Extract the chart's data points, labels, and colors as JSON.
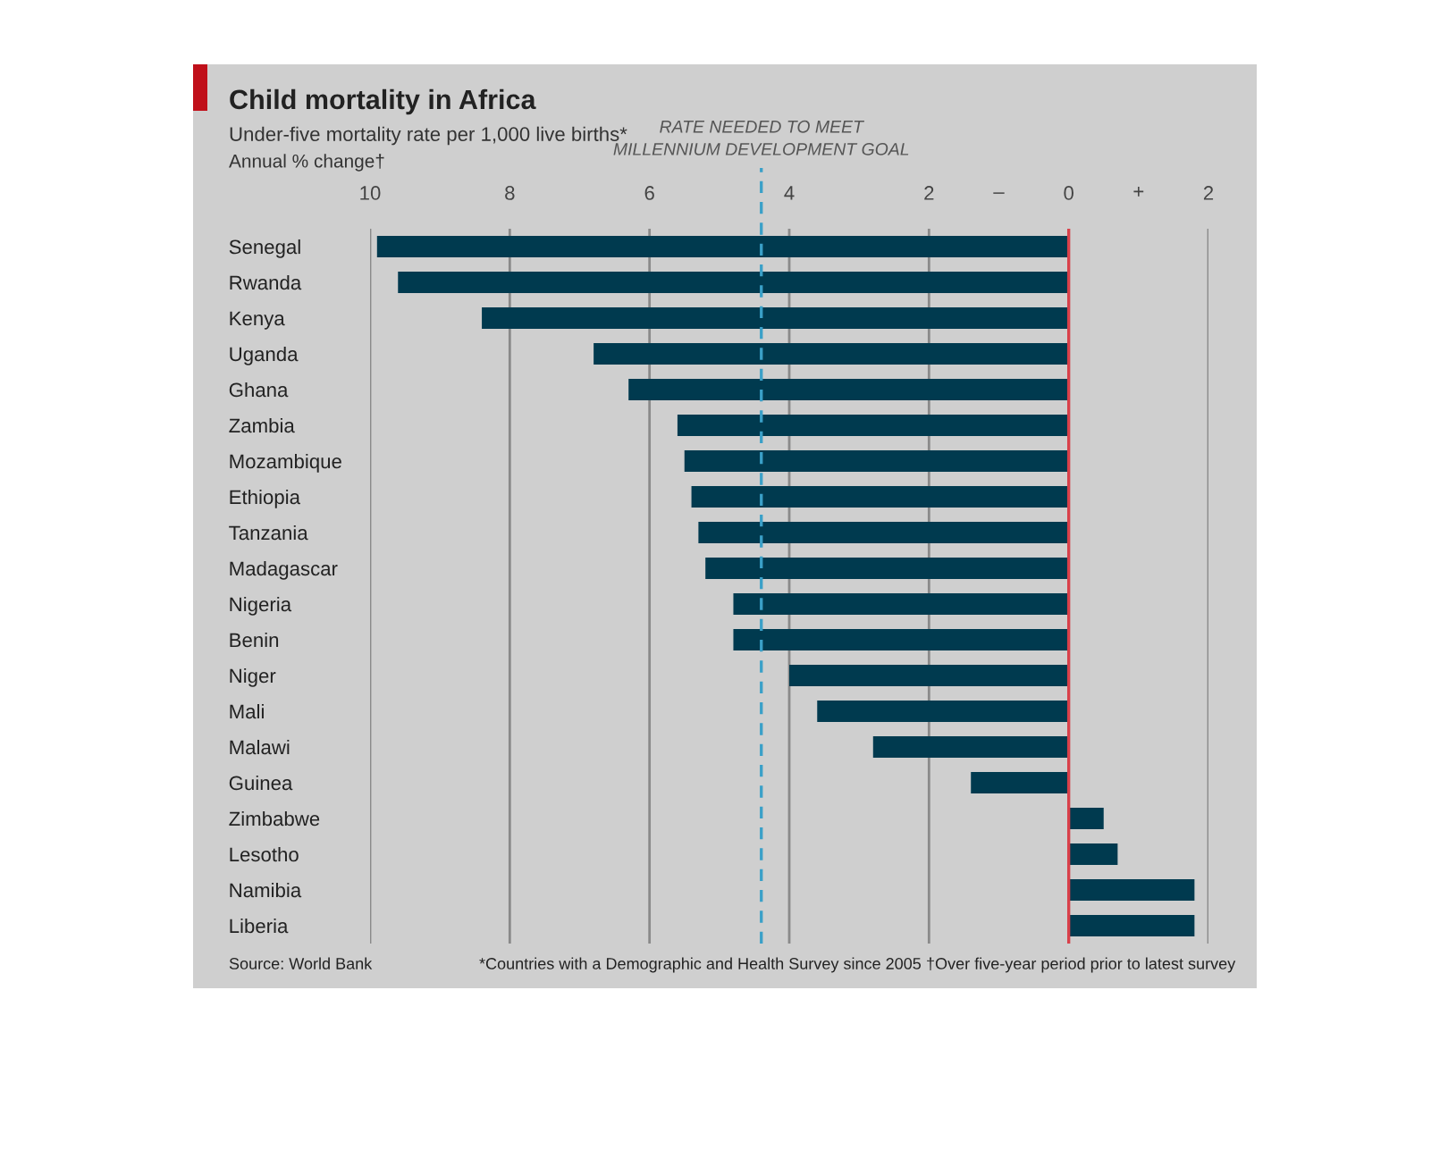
{
  "chart_data": {
    "type": "bar",
    "orientation": "horizontal",
    "title": "Child mortality in Africa",
    "subtitle": "Under-five mortality rate per 1,000 live births*",
    "xlabel": "Annual % change†",
    "categories": [
      "Senegal",
      "Rwanda",
      "Kenya",
      "Uganda",
      "Ghana",
      "Zambia",
      "Mozambique",
      "Ethiopia",
      "Tanzania",
      "Madagascar",
      "Nigeria",
      "Benin",
      "Niger",
      "Mali",
      "Malawi",
      "Guinea",
      "Zimbabwe",
      "Lesotho",
      "Namibia",
      "Liberia"
    ],
    "values": [
      -9.9,
      -9.6,
      -8.4,
      -6.8,
      -6.3,
      -5.6,
      -5.5,
      -5.4,
      -5.3,
      -5.2,
      -4.8,
      -4.8,
      -4.0,
      -3.6,
      -2.8,
      -1.4,
      0.5,
      0.7,
      1.8,
      1.8
    ],
    "color": "#003a4f",
    "xlim": [
      -10,
      2
    ],
    "xticks": [
      {
        "value": -10,
        "label": "10"
      },
      {
        "value": -8,
        "label": "8"
      },
      {
        "value": -6,
        "label": "6"
      },
      {
        "value": -4,
        "label": "4"
      },
      {
        "value": -2,
        "label": "2"
      },
      0,
      2
    ],
    "grid": "x",
    "ref_lines": [
      {
        "axis": "x",
        "value": -4.4,
        "label": "RATE NEEDED TO MEET\nMILLENNIUM DEVELOPMENT GOAL",
        "color": "#3aa0c8",
        "line_style": "dashed"
      },
      {
        "axis": "x",
        "value": 0,
        "color": "#d9404a",
        "line_style": "solid"
      }
    ],
    "annotations": [
      "–",
      "+",
      "Source: World Bank",
      "*Countries with a Demographic and Health Survey since 2005",
      "†Over five-year period prior to latest survey"
    ]
  }
}
